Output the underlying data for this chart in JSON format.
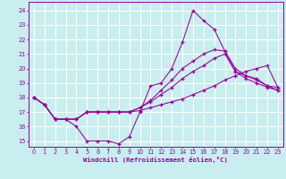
{
  "xlabel": "Windchill (Refroidissement éolien,°C)",
  "bg_color": "#c8eef0",
  "line_color": "#990099",
  "grid_color": "#ffffff",
  "x_ticks": [
    0,
    1,
    2,
    3,
    4,
    5,
    6,
    7,
    8,
    9,
    10,
    11,
    12,
    13,
    14,
    15,
    16,
    17,
    18,
    19,
    20,
    21,
    22,
    23
  ],
  "y_ticks": [
    15,
    16,
    17,
    18,
    19,
    20,
    21,
    22,
    23,
    24
  ],
  "xlim": [
    -0.5,
    23.5
  ],
  "ylim": [
    14.6,
    24.6
  ],
  "lines": [
    {
      "x": [
        0,
        1,
        2,
        3,
        4,
        5,
        6,
        7,
        8,
        9,
        10,
        11,
        12,
        13,
        14,
        15,
        16,
        17,
        18,
        19,
        20,
        21,
        22,
        23
      ],
      "y": [
        18.0,
        17.5,
        16.5,
        16.5,
        16.0,
        15.0,
        15.0,
        15.0,
        14.8,
        15.3,
        17.0,
        18.8,
        19.0,
        20.0,
        21.8,
        24.0,
        23.3,
        22.7,
        21.2,
        19.8,
        19.5,
        19.3,
        18.8,
        18.7
      ]
    },
    {
      "x": [
        0,
        1,
        2,
        3,
        4,
        5,
        6,
        7,
        8,
        9,
        10,
        11,
        12,
        13,
        14,
        15,
        16,
        17,
        18,
        19,
        20,
        21,
        22,
        23
      ],
      "y": [
        18.0,
        17.5,
        16.5,
        16.5,
        16.5,
        17.0,
        17.0,
        17.0,
        17.0,
        17.0,
        17.1,
        17.3,
        17.5,
        17.7,
        17.9,
        18.2,
        18.5,
        18.8,
        19.2,
        19.5,
        19.8,
        20.0,
        20.2,
        18.7
      ]
    },
    {
      "x": [
        0,
        1,
        2,
        3,
        4,
        5,
        6,
        7,
        8,
        9,
        10,
        11,
        12,
        13,
        14,
        15,
        16,
        17,
        18,
        19,
        20,
        21,
        22,
        23
      ],
      "y": [
        18.0,
        17.5,
        16.5,
        16.5,
        16.5,
        17.0,
        17.0,
        17.0,
        17.0,
        17.0,
        17.3,
        17.7,
        18.2,
        18.7,
        19.3,
        19.8,
        20.2,
        20.7,
        21.0,
        19.8,
        19.3,
        19.0,
        18.7,
        18.5
      ]
    },
    {
      "x": [
        0,
        1,
        2,
        3,
        4,
        5,
        6,
        7,
        8,
        9,
        10,
        11,
        12,
        13,
        14,
        15,
        16,
        17,
        18,
        19,
        20,
        21,
        22,
        23
      ],
      "y": [
        18.0,
        17.5,
        16.5,
        16.5,
        16.5,
        17.0,
        17.0,
        17.0,
        17.0,
        17.0,
        17.3,
        17.8,
        18.5,
        19.2,
        20.0,
        20.5,
        21.0,
        21.3,
        21.2,
        20.0,
        19.5,
        19.2,
        18.8,
        18.5
      ]
    }
  ]
}
